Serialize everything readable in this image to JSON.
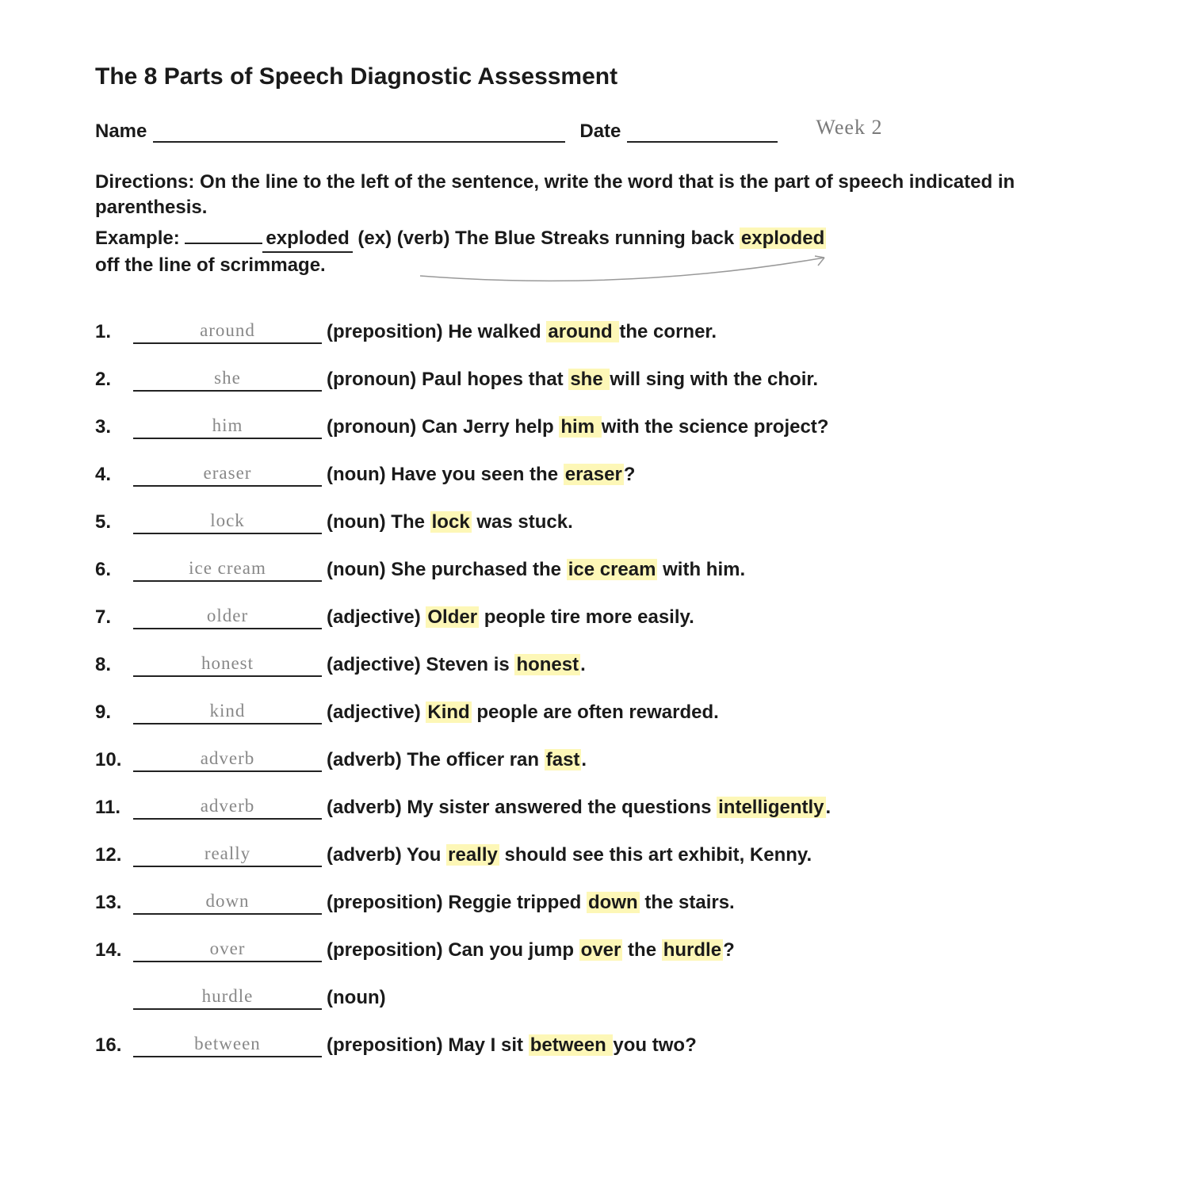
{
  "title": "The 8 Parts of Speech Diagnostic Assessment",
  "labels": {
    "name": "Name",
    "date": "Date",
    "week_note": "Week 2"
  },
  "directions": "Directions: On the line to the left of the sentence, write the word that is the part of speech indicated in parenthesis.",
  "example": {
    "prefix": "Example: ",
    "blank_pre": "",
    "answer": "exploded",
    "after_answer": "(ex) (verb) The Blue Streaks running back ",
    "hl_word": "exploded",
    "line2": "off the line of scrimmage."
  },
  "highlight_color": "#fdf7b7",
  "handwriting_color": "#888888",
  "text_color": "#1a1a1a",
  "items": [
    {
      "num": "1.",
      "answer": "around",
      "pos": "(preposition)",
      "pre": " He walked ",
      "hl": "around ",
      "post": "the corner."
    },
    {
      "num": "2.",
      "answer": "she",
      "pos": "(pronoun)",
      "pre": " Paul hopes that ",
      "hl": "she ",
      "post": "will sing with the choir."
    },
    {
      "num": "3.",
      "answer": "him",
      "pos": "(pronoun)",
      "pre": " Can Jerry help ",
      "hl": "him ",
      "post": "with the science project?"
    },
    {
      "num": "4.",
      "answer": "eraser",
      "pos": "(noun)",
      "pre": " Have you seen the ",
      "hl": "eraser",
      "post": "?"
    },
    {
      "num": "5.",
      "answer": "lock",
      "pos": "(noun)",
      "pre": " The ",
      "hl": "lock",
      "post": " was stuck."
    },
    {
      "num": "6.",
      "answer": "ice cream",
      "pos": "(noun)",
      "pre": " She purchased the ",
      "hl": "ice cream",
      "post": " with him."
    },
    {
      "num": "7.",
      "answer": "older",
      "pos": "(adjective)",
      "pre": " ",
      "hl": "Older",
      "post": " people tire more easily."
    },
    {
      "num": "8.",
      "answer": "honest",
      "pos": "(adjective)",
      "pre": " Steven is ",
      "hl": "honest",
      "post": "."
    },
    {
      "num": "9.",
      "answer": "kind",
      "pos": "(adjective)",
      "pre": " ",
      "hl": "Kind",
      "post": " people are often rewarded."
    },
    {
      "num": "10.",
      "answer": "adverb",
      "pos": "(adverb)",
      "pre": " The officer ran ",
      "hl": "fast",
      "post": "."
    },
    {
      "num": "11.",
      "answer": "adverb",
      "pos": "(adverb)",
      "pre": " My sister answered the questions ",
      "hl": "intelligently",
      "post": "."
    },
    {
      "num": "12.",
      "answer": "really",
      "pos": "(adverb)",
      "pre": " You ",
      "hl": "really",
      "post": " should see this art exhibit, Kenny."
    },
    {
      "num": "13.",
      "answer": "down",
      "pos": "(preposition)",
      "pre": " Reggie tripped ",
      "hl": "down",
      "post": " the stairs."
    },
    {
      "num": "14.",
      "answer": "over",
      "pos": "(preposition)",
      "pre": " Can you jump ",
      "hl": "over",
      "post": " the ",
      "hl2": "hurdle",
      "post2": "?"
    },
    {
      "num": "",
      "answer": "hurdle",
      "pos": "(noun)",
      "pre": "",
      "hl": "",
      "post": ""
    },
    {
      "num": "16.",
      "answer": "between",
      "pos": "(preposition)",
      "pre": " May I sit ",
      "hl": "between ",
      "post": "you two?"
    }
  ]
}
